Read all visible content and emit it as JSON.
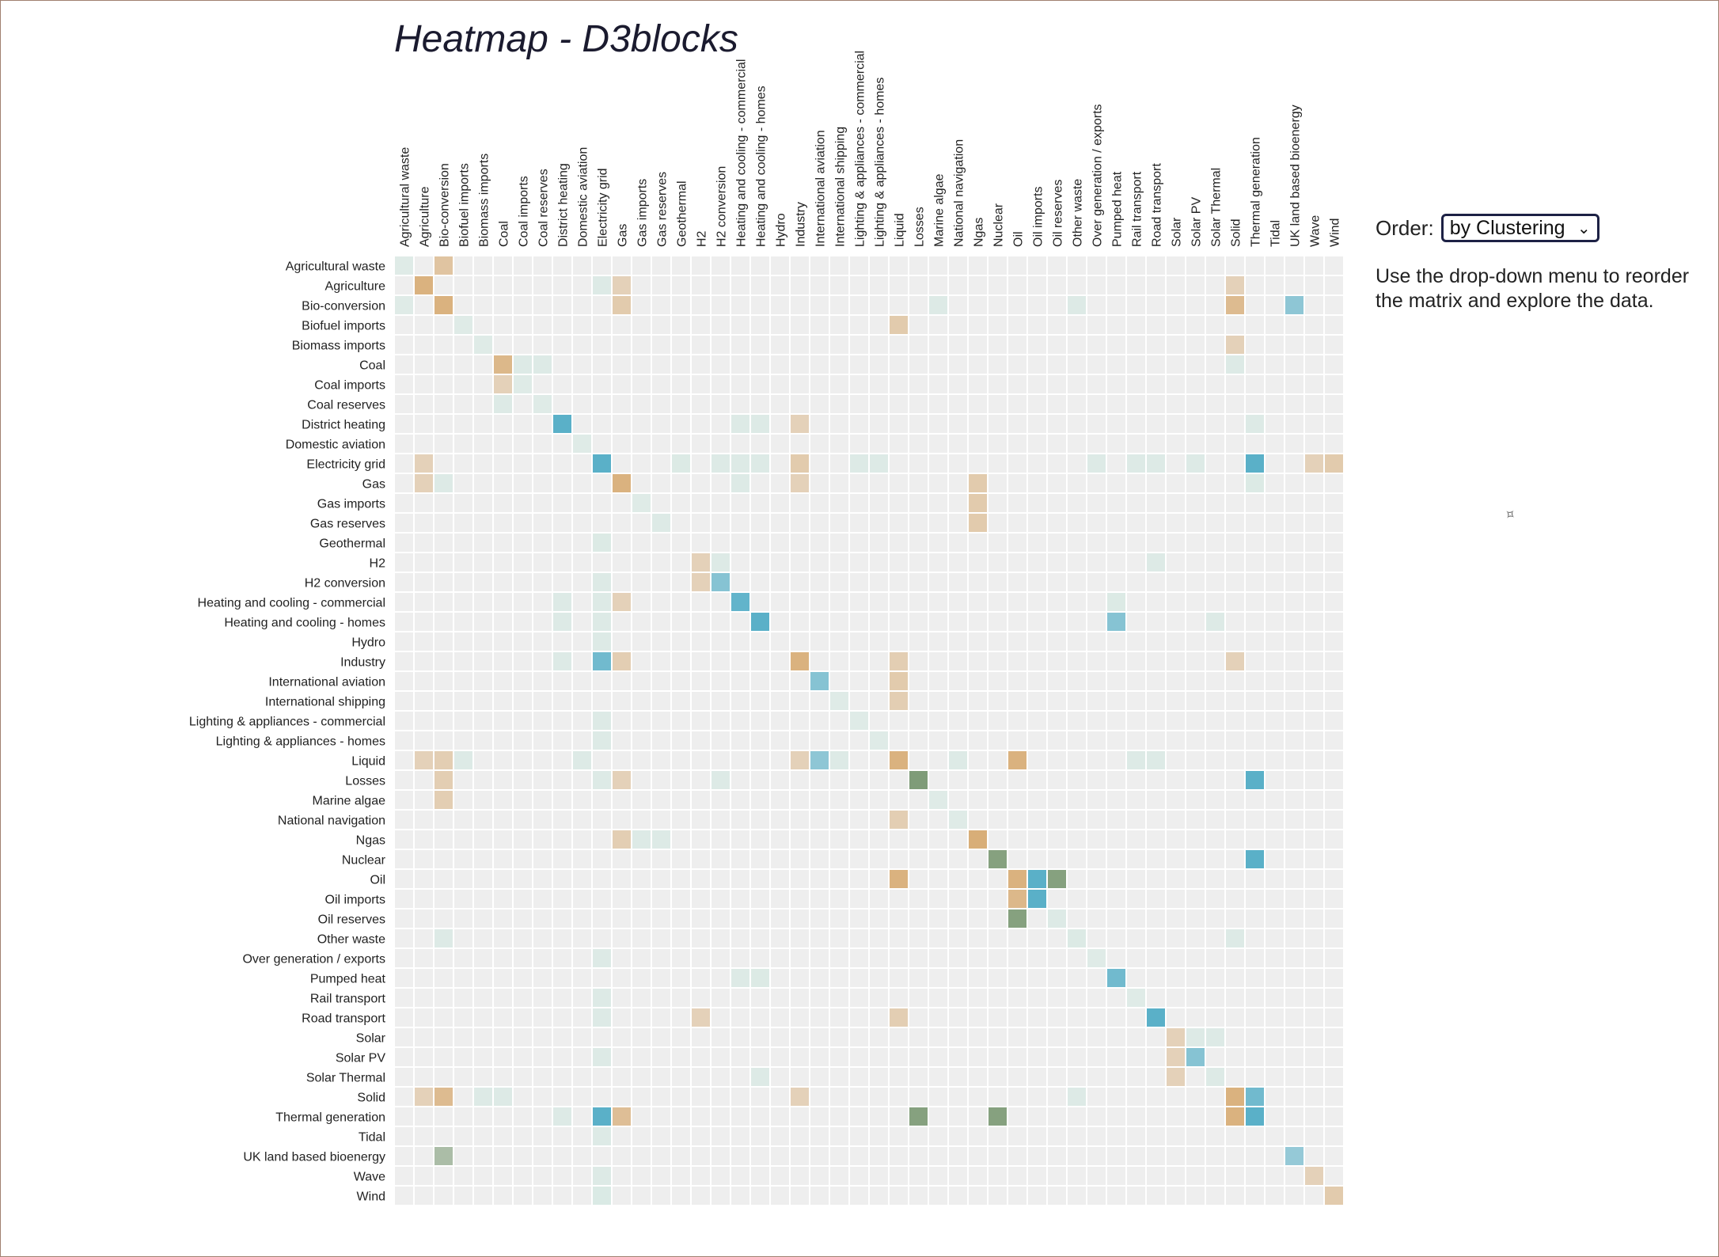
{
  "page": {
    "title": "Heatmap - D3blocks",
    "order_label": "Order:",
    "order_value": "by Clustering",
    "hint": "Use the drop-down menu to reorder the matrix and explore the data."
  },
  "colors": {
    "empty": "#eeeeee",
    "blue": "#5ab0c8",
    "tan": "#d8ae78",
    "mint": "#d0e8e0",
    "sage": "#7f9c78",
    "cream": "#efe0c8"
  },
  "chart_data": {
    "type": "heatmap",
    "title": "Heatmap - D3blocks",
    "nodes": [
      "Agricultural waste",
      "Agriculture",
      "Bio-conversion",
      "Biofuel imports",
      "Biomass imports",
      "Coal",
      "Coal imports",
      "Coal reserves",
      "District heating",
      "Domestic aviation",
      "Electricity grid",
      "Gas",
      "Gas imports",
      "Gas reserves",
      "Geothermal",
      "H2",
      "H2 conversion",
      "Heating and cooling - commercial",
      "Heating and cooling - homes",
      "Hydro",
      "Industry",
      "International aviation",
      "International shipping",
      "Lighting & appliances - commercial",
      "Lighting & appliances - homes",
      "Liquid",
      "Losses",
      "Marine algae",
      "National navigation",
      "Ngas",
      "Nuclear",
      "Oil",
      "Oil imports",
      "Oil reserves",
      "Other waste",
      "Over generation / exports",
      "Pumped heat",
      "Rail transport",
      "Road transport",
      "Solar",
      "Solar PV",
      "Solar Thermal",
      "Solid",
      "Thermal generation",
      "Tidal",
      "UK land based bioenergy",
      "Wave",
      "Wind"
    ],
    "cells": [
      [
        "Agricultural waste",
        "Agricultural waste",
        0.25,
        "mint"
      ],
      [
        "Agricultural waste",
        "Bio-conversion",
        0.4,
        "tan"
      ],
      [
        "Agriculture",
        "Agriculture",
        0.7,
        "tan"
      ],
      [
        "Agriculture",
        "Electricity grid",
        0.3,
        "mint"
      ],
      [
        "Agriculture",
        "Gas",
        0.2,
        "tan"
      ],
      [
        "Agriculture",
        "Solid",
        0.2,
        "tan"
      ],
      [
        "Bio-conversion",
        "Agricultural waste",
        0.25,
        "mint"
      ],
      [
        "Bio-conversion",
        "Bio-conversion",
        0.7,
        "tan"
      ],
      [
        "Bio-conversion",
        "Gas",
        0.3,
        "tan"
      ],
      [
        "Bio-conversion",
        "Marine algae",
        0.3,
        "mint"
      ],
      [
        "Bio-conversion",
        "Other waste",
        0.3,
        "mint"
      ],
      [
        "Bio-conversion",
        "Solid",
        0.55,
        "tan"
      ],
      [
        "Bio-conversion",
        "UK land based bioenergy",
        0.4,
        "blue"
      ],
      [
        "Biofuel imports",
        "Biofuel imports",
        0.25,
        "mint"
      ],
      [
        "Biofuel imports",
        "Liquid",
        0.3,
        "tan"
      ],
      [
        "Biomass imports",
        "Biomass imports",
        0.25,
        "mint"
      ],
      [
        "Biomass imports",
        "Solid",
        0.2,
        "tan"
      ],
      [
        "Coal",
        "Coal",
        0.6,
        "tan"
      ],
      [
        "Coal",
        "Coal imports",
        0.3,
        "mint"
      ],
      [
        "Coal",
        "Coal reserves",
        0.3,
        "mint"
      ],
      [
        "Coal",
        "Solid",
        0.3,
        "mint"
      ],
      [
        "Coal imports",
        "Coal",
        0.2,
        "tan"
      ],
      [
        "Coal imports",
        "Coal imports",
        0.25,
        "mint"
      ],
      [
        "Coal reserves",
        "Coal",
        0.3,
        "mint"
      ],
      [
        "Coal reserves",
        "Coal reserves",
        0.25,
        "mint"
      ],
      [
        "District heating",
        "District heating",
        0.75,
        "blue"
      ],
      [
        "District heating",
        "Heating and cooling - commercial",
        0.3,
        "mint"
      ],
      [
        "District heating",
        "Heating and cooling - homes",
        0.3,
        "mint"
      ],
      [
        "District heating",
        "Industry",
        0.2,
        "tan"
      ],
      [
        "District heating",
        "Thermal generation",
        0.3,
        "mint"
      ],
      [
        "Domestic aviation",
        "Domestic aviation",
        0.25,
        "mint"
      ],
      [
        "Electricity grid",
        "Agriculture",
        0.2,
        "tan"
      ],
      [
        "Electricity grid",
        "Electricity grid",
        0.85,
        "blue"
      ],
      [
        "Electricity grid",
        "Geothermal",
        0.35,
        "mint"
      ],
      [
        "Electricity grid",
        "H2 conversion",
        0.3,
        "mint"
      ],
      [
        "Electricity grid",
        "Heating and cooling - commercial",
        0.3,
        "mint"
      ],
      [
        "Electricity grid",
        "Heating and cooling - homes",
        0.3,
        "mint"
      ],
      [
        "Electricity grid",
        "Industry",
        0.3,
        "tan"
      ],
      [
        "Electricity grid",
        "Lighting & appliances - commercial",
        0.3,
        "mint"
      ],
      [
        "Electricity grid",
        "Lighting & appliances - homes",
        0.3,
        "mint"
      ],
      [
        "Electricity grid",
        "Over generation / exports",
        0.3,
        "mint"
      ],
      [
        "Electricity grid",
        "Rail transport",
        0.3,
        "mint"
      ],
      [
        "Electricity grid",
        "Road transport",
        0.3,
        "mint"
      ],
      [
        "Electricity grid",
        "Solar PV",
        0.3,
        "mint"
      ],
      [
        "Electricity grid",
        "Thermal generation",
        0.85,
        "blue"
      ],
      [
        "Electricity grid",
        "Wave",
        0.2,
        "tan"
      ],
      [
        "Electricity grid",
        "Wind",
        0.3,
        "tan"
      ],
      [
        "Gas",
        "Agriculture",
        0.2,
        "tan"
      ],
      [
        "Gas",
        "Bio-conversion",
        0.3,
        "mint"
      ],
      [
        "Gas",
        "Gas",
        0.7,
        "tan"
      ],
      [
        "Gas",
        "Heating and cooling - commercial",
        0.3,
        "mint"
      ],
      [
        "Gas",
        "Industry",
        0.2,
        "tan"
      ],
      [
        "Gas",
        "Ngas",
        0.3,
        "tan"
      ],
      [
        "Gas",
        "Thermal generation",
        0.35,
        "mint"
      ],
      [
        "Gas imports",
        "Gas imports",
        0.25,
        "mint"
      ],
      [
        "Gas imports",
        "Ngas",
        0.3,
        "tan"
      ],
      [
        "Gas reserves",
        "Gas reserves",
        0.3,
        "mint"
      ],
      [
        "Gas reserves",
        "Ngas",
        0.3,
        "tan"
      ],
      [
        "Geothermal",
        "Electricity grid",
        0.35,
        "mint"
      ],
      [
        "H2",
        "H2",
        0.2,
        "tan"
      ],
      [
        "H2",
        "H2 conversion",
        0.3,
        "mint"
      ],
      [
        "H2",
        "Road transport",
        0.3,
        "mint"
      ],
      [
        "H2 conversion",
        "Electricity grid",
        0.3,
        "mint"
      ],
      [
        "H2 conversion",
        "H2",
        0.2,
        "tan"
      ],
      [
        "H2 conversion",
        "H2 conversion",
        0.45,
        "blue"
      ],
      [
        "Heating and cooling - commercial",
        "District heating",
        0.3,
        "mint"
      ],
      [
        "Heating and cooling - commercial",
        "Electricity grid",
        0.3,
        "mint"
      ],
      [
        "Heating and cooling - commercial",
        "Gas",
        0.2,
        "tan"
      ],
      [
        "Heating and cooling - commercial",
        "Heating and cooling - commercial",
        0.7,
        "blue"
      ],
      [
        "Heating and cooling - commercial",
        "Pumped heat",
        0.35,
        "mint"
      ],
      [
        "Heating and cooling - homes",
        "District heating",
        0.3,
        "mint"
      ],
      [
        "Heating and cooling - homes",
        "Electricity grid",
        0.3,
        "mint"
      ],
      [
        "Heating and cooling - homes",
        "Heating and cooling - homes",
        0.9,
        "blue"
      ],
      [
        "Heating and cooling - homes",
        "Pumped heat",
        0.45,
        "blue"
      ],
      [
        "Heating and cooling - homes",
        "Solar Thermal",
        0.3,
        "mint"
      ],
      [
        "Hydro",
        "Electricity grid",
        0.3,
        "mint"
      ],
      [
        "Industry",
        "District heating",
        0.3,
        "mint"
      ],
      [
        "Industry",
        "Electricity grid",
        0.6,
        "blue"
      ],
      [
        "Industry",
        "Gas",
        0.25,
        "tan"
      ],
      [
        "Industry",
        "Industry",
        0.7,
        "tan"
      ],
      [
        "Industry",
        "Liquid",
        0.25,
        "tan"
      ],
      [
        "Industry",
        "Solid",
        0.2,
        "tan"
      ],
      [
        "International aviation",
        "International aviation",
        0.45,
        "blue"
      ],
      [
        "International aviation",
        "Liquid",
        0.3,
        "tan"
      ],
      [
        "International shipping",
        "International shipping",
        0.25,
        "mint"
      ],
      [
        "International shipping",
        "Liquid",
        0.25,
        "tan"
      ],
      [
        "Lighting & appliances - commercial",
        "Electricity grid",
        0.3,
        "mint"
      ],
      [
        "Lighting & appliances - commercial",
        "Lighting & appliances - commercial",
        0.25,
        "mint"
      ],
      [
        "Lighting & appliances - homes",
        "Electricity grid",
        0.3,
        "mint"
      ],
      [
        "Lighting & appliances - homes",
        "Lighting & appliances - homes",
        0.25,
        "mint"
      ],
      [
        "Liquid",
        "Agriculture",
        0.2,
        "tan"
      ],
      [
        "Liquid",
        "Bio-conversion",
        0.25,
        "tan"
      ],
      [
        "Liquid",
        "Biofuel imports",
        0.3,
        "mint"
      ],
      [
        "Liquid",
        "Domestic aviation",
        0.3,
        "mint"
      ],
      [
        "Liquid",
        "Industry",
        0.2,
        "tan"
      ],
      [
        "Liquid",
        "International aviation",
        0.4,
        "blue"
      ],
      [
        "Liquid",
        "International shipping",
        0.3,
        "mint"
      ],
      [
        "Liquid",
        "Liquid",
        0.7,
        "tan"
      ],
      [
        "Liquid",
        "National navigation",
        0.3,
        "mint"
      ],
      [
        "Liquid",
        "Oil",
        0.7,
        "tan"
      ],
      [
        "Liquid",
        "Rail transport",
        0.3,
        "mint"
      ],
      [
        "Liquid",
        "Road transport",
        0.3,
        "mint"
      ],
      [
        "Losses",
        "Bio-conversion",
        0.25,
        "tan"
      ],
      [
        "Losses",
        "Electricity grid",
        0.3,
        "mint"
      ],
      [
        "Losses",
        "Gas",
        0.2,
        "tan"
      ],
      [
        "Losses",
        "H2 conversion",
        0.3,
        "mint"
      ],
      [
        "Losses",
        "Losses",
        0.75,
        "sage"
      ],
      [
        "Losses",
        "Thermal generation",
        0.85,
        "blue"
      ],
      [
        "Marine algae",
        "Bio-conversion",
        0.25,
        "tan"
      ],
      [
        "Marine algae",
        "Marine algae",
        0.25,
        "mint"
      ],
      [
        "National navigation",
        "Liquid",
        0.25,
        "tan"
      ],
      [
        "National navigation",
        "National navigation",
        0.25,
        "mint"
      ],
      [
        "Ngas",
        "Gas",
        0.25,
        "tan"
      ],
      [
        "Ngas",
        "Gas imports",
        0.3,
        "mint"
      ],
      [
        "Ngas",
        "Gas reserves",
        0.3,
        "mint"
      ],
      [
        "Ngas",
        "Ngas",
        0.75,
        "tan"
      ],
      [
        "Nuclear",
        "Nuclear",
        0.7,
        "sage"
      ],
      [
        "Nuclear",
        "Thermal generation",
        0.85,
        "blue"
      ],
      [
        "Oil",
        "Liquid",
        0.7,
        "tan"
      ],
      [
        "Oil",
        "Oil",
        0.7,
        "tan"
      ],
      [
        "Oil",
        "Oil imports",
        0.85,
        "blue"
      ],
      [
        "Oil",
        "Oil reserves",
        0.7,
        "sage"
      ],
      [
        "Oil imports",
        "Oil",
        0.6,
        "tan"
      ],
      [
        "Oil imports",
        "Oil imports",
        0.85,
        "blue"
      ],
      [
        "Oil reserves",
        "Oil",
        0.7,
        "sage"
      ],
      [
        "Oil reserves",
        "Oil reserves",
        0.3,
        "mint"
      ],
      [
        "Other waste",
        "Bio-conversion",
        0.3,
        "mint"
      ],
      [
        "Other waste",
        "Other waste",
        0.35,
        "mint"
      ],
      [
        "Other waste",
        "Solid",
        0.3,
        "mint"
      ],
      [
        "Over generation / exports",
        "Electricity grid",
        0.3,
        "mint"
      ],
      [
        "Over generation / exports",
        "Over generation / exports",
        0.25,
        "mint"
      ],
      [
        "Pumped heat",
        "Heating and cooling - commercial",
        0.3,
        "mint"
      ],
      [
        "Pumped heat",
        "Heating and cooling - homes",
        0.35,
        "mint"
      ],
      [
        "Pumped heat",
        "Pumped heat",
        0.6,
        "blue"
      ],
      [
        "Rail transport",
        "Electricity grid",
        0.3,
        "mint"
      ],
      [
        "Rail transport",
        "Rail transport",
        0.25,
        "mint"
      ],
      [
        "Road transport",
        "Electricity grid",
        0.3,
        "mint"
      ],
      [
        "Road transport",
        "H2",
        0.2,
        "tan"
      ],
      [
        "Road transport",
        "Liquid",
        0.25,
        "tan"
      ],
      [
        "Road transport",
        "Road transport",
        0.75,
        "blue"
      ],
      [
        "Solar",
        "Solar",
        0.2,
        "tan"
      ],
      [
        "Solar",
        "Solar PV",
        0.3,
        "mint"
      ],
      [
        "Solar",
        "Solar Thermal",
        0.3,
        "mint"
      ],
      [
        "Solar PV",
        "Electricity grid",
        0.3,
        "mint"
      ],
      [
        "Solar PV",
        "Solar",
        0.2,
        "tan"
      ],
      [
        "Solar PV",
        "Solar PV",
        0.45,
        "blue"
      ],
      [
        "Solar Thermal",
        "Heating and cooling - homes",
        0.3,
        "mint"
      ],
      [
        "Solar Thermal",
        "Solar",
        0.2,
        "tan"
      ],
      [
        "Solar Thermal",
        "Solar Thermal",
        0.3,
        "mint"
      ],
      [
        "Solid",
        "Agriculture",
        0.2,
        "tan"
      ],
      [
        "Solid",
        "Bio-conversion",
        0.55,
        "tan"
      ],
      [
        "Solid",
        "Biomass imports",
        0.3,
        "mint"
      ],
      [
        "Solid",
        "Coal",
        0.3,
        "mint"
      ],
      [
        "Solid",
        "Industry",
        0.2,
        "tan"
      ],
      [
        "Solid",
        "Other waste",
        0.3,
        "mint"
      ],
      [
        "Solid",
        "Solid",
        0.7,
        "tan"
      ],
      [
        "Solid",
        "Thermal generation",
        0.6,
        "blue"
      ],
      [
        "Thermal generation",
        "District heating",
        0.3,
        "mint"
      ],
      [
        "Thermal generation",
        "Electricity grid",
        0.85,
        "blue"
      ],
      [
        "Thermal generation",
        "Gas",
        0.5,
        "tan"
      ],
      [
        "Thermal generation",
        "Losses",
        0.7,
        "sage"
      ],
      [
        "Thermal generation",
        "Nuclear",
        0.7,
        "sage"
      ],
      [
        "Thermal generation",
        "Solid",
        0.7,
        "tan"
      ],
      [
        "Thermal generation",
        "Thermal generation",
        0.85,
        "blue"
      ],
      [
        "Tidal",
        "Electricity grid",
        0.3,
        "mint"
      ],
      [
        "UK land based bioenergy",
        "Bio-conversion",
        0.35,
        "sage"
      ],
      [
        "UK land based bioenergy",
        "UK land based bioenergy",
        0.35,
        "blue"
      ],
      [
        "Wave",
        "Electricity grid",
        0.3,
        "mint"
      ],
      [
        "Wave",
        "Wave",
        0.2,
        "tan"
      ],
      [
        "Wind",
        "Electricity grid",
        0.4,
        "mint"
      ],
      [
        "Wind",
        "Wind",
        0.3,
        "tan"
      ]
    ]
  }
}
